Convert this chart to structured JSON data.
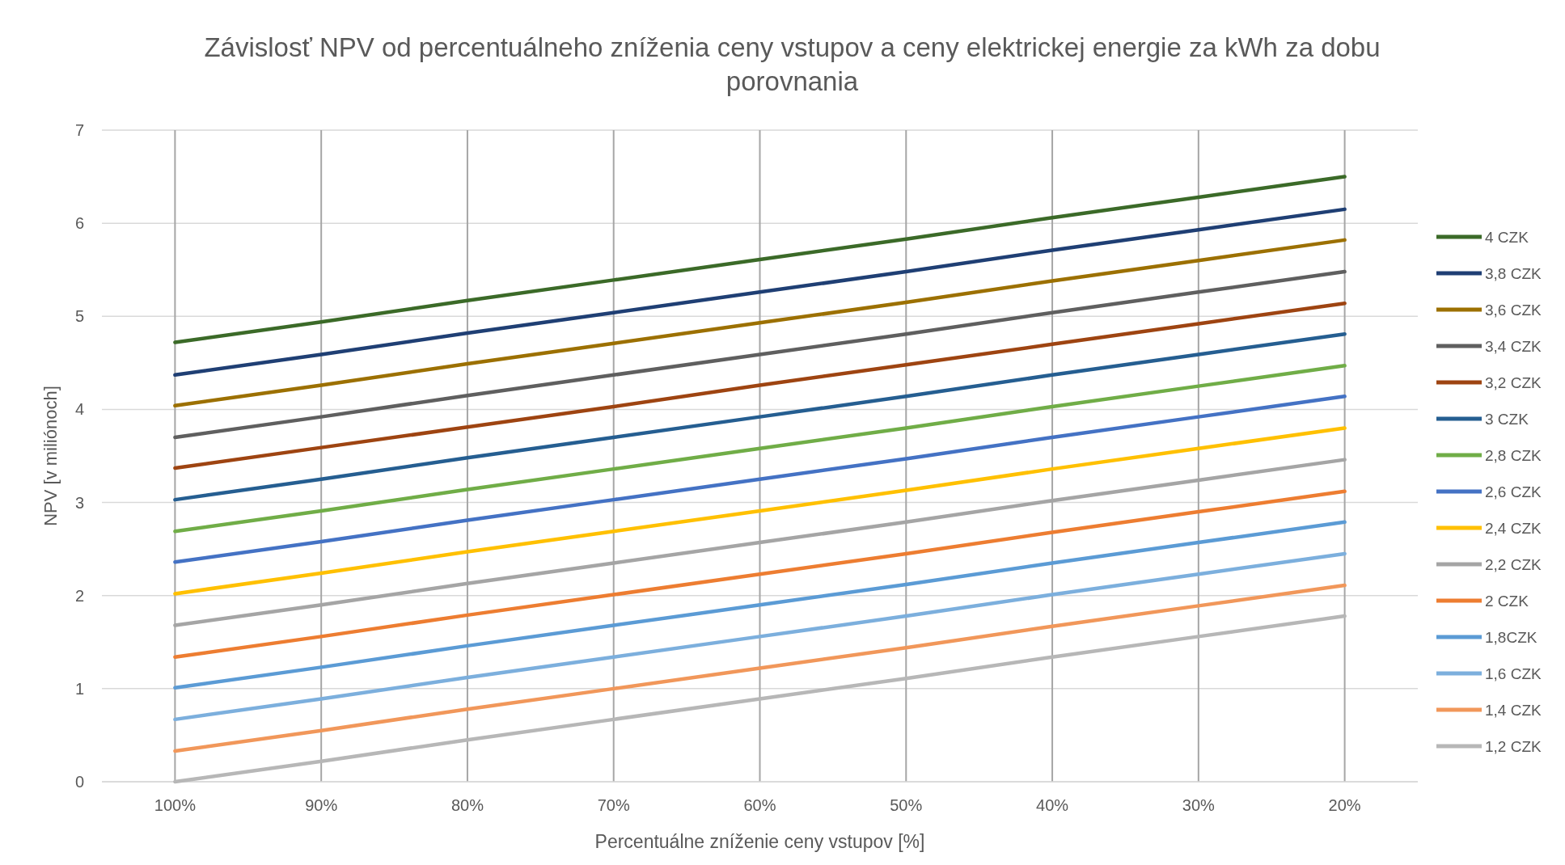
{
  "chart_data": {
    "type": "line",
    "title": "Závislosť NPV od percentuálneho zníženia ceny vstupov a ceny elektrickej energie za kWh za dobu porovnania",
    "xlabel": "Percentuálne zníženie ceny vstupov [%]",
    "ylabel": "NPV [v miliónoch]",
    "categories": [
      "100%",
      "90%",
      "80%",
      "70%",
      "60%",
      "50%",
      "40%",
      "30%",
      "20%"
    ],
    "ylim": [
      0,
      7
    ],
    "yticks": [
      0,
      1,
      2,
      3,
      4,
      5,
      6,
      7
    ],
    "grid": true,
    "legend": "right",
    "marker": "none",
    "line_style": "solid",
    "series": [
      {
        "name": "4 CZK",
        "color": "#3b6a28",
        "values": [
          4.72,
          4.94,
          5.17,
          5.39,
          5.61,
          5.83,
          6.06,
          6.28,
          6.5
        ]
      },
      {
        "name": "3,8 CZK",
        "color": "#1f3f74",
        "values": [
          4.37,
          4.59,
          4.82,
          5.04,
          5.26,
          5.48,
          5.71,
          5.93,
          6.15
        ]
      },
      {
        "name": "3,6 CZK",
        "color": "#9c7000",
        "values": [
          4.04,
          4.26,
          4.49,
          4.71,
          4.93,
          5.15,
          5.38,
          5.6,
          5.82
        ]
      },
      {
        "name": "3,4 CZK",
        "color": "#5f5f5f",
        "values": [
          3.7,
          3.92,
          4.15,
          4.37,
          4.59,
          4.81,
          5.04,
          5.26,
          5.48
        ]
      },
      {
        "name": "3,2 CZK",
        "color": "#9e4411",
        "values": [
          3.37,
          3.59,
          3.81,
          4.03,
          4.26,
          4.48,
          4.7,
          4.92,
          5.14
        ]
      },
      {
        "name": "3 CZK",
        "color": "#255e91",
        "values": [
          3.03,
          3.25,
          3.48,
          3.7,
          3.92,
          4.14,
          4.37,
          4.59,
          4.81
        ]
      },
      {
        "name": "2,8 CZK",
        "color": "#70ad47",
        "values": [
          2.69,
          2.91,
          3.14,
          3.36,
          3.58,
          3.8,
          4.03,
          4.25,
          4.47
        ]
      },
      {
        "name": "2,6 CZK",
        "color": "#4472c4",
        "values": [
          2.36,
          2.58,
          2.81,
          3.03,
          3.25,
          3.47,
          3.7,
          3.92,
          4.14
        ]
      },
      {
        "name": "2,4 CZK",
        "color": "#ffc000",
        "values": [
          2.02,
          2.24,
          2.47,
          2.69,
          2.91,
          3.13,
          3.36,
          3.58,
          3.8
        ]
      },
      {
        "name": "2,2 CZK",
        "color": "#a5a5a5",
        "values": [
          1.68,
          1.9,
          2.13,
          2.35,
          2.57,
          2.79,
          3.02,
          3.24,
          3.46
        ]
      },
      {
        "name": "2 CZK",
        "color": "#ed7d31",
        "values": [
          1.34,
          1.56,
          1.79,
          2.01,
          2.23,
          2.45,
          2.68,
          2.9,
          3.12
        ]
      },
      {
        "name": "1,8CZK",
        "color": "#5b9bd5",
        "values": [
          1.01,
          1.23,
          1.46,
          1.68,
          1.9,
          2.12,
          2.35,
          2.57,
          2.79
        ]
      },
      {
        "name": "1,6 CZK",
        "color": "#7cafdd",
        "values": [
          0.67,
          0.89,
          1.12,
          1.34,
          1.56,
          1.78,
          2.01,
          2.23,
          2.45
        ]
      },
      {
        "name": "1,4 CZK",
        "color": "#f1975a",
        "values": [
          0.33,
          0.55,
          0.78,
          1.0,
          1.22,
          1.44,
          1.67,
          1.89,
          2.11
        ]
      },
      {
        "name": "1,2 CZK",
        "color": "#b7b7b7",
        "values": [
          0,
          0.22,
          0.45,
          0.67,
          0.89,
          1.11,
          1.34,
          1.56,
          1.78
        ]
      }
    ]
  }
}
